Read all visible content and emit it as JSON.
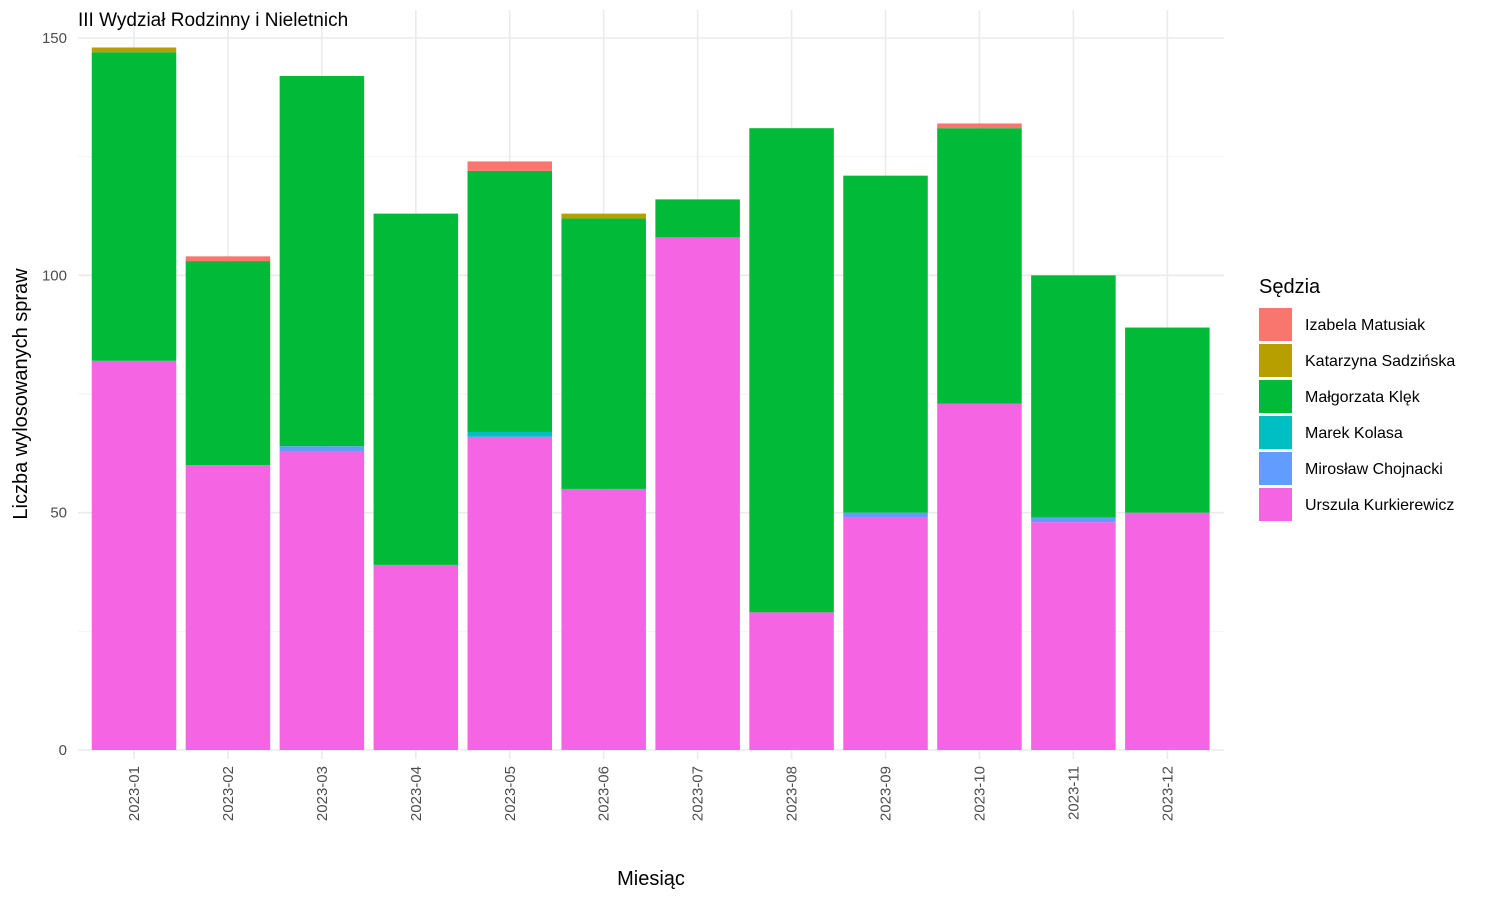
{
  "chart_data": {
    "type": "bar",
    "stacked": true,
    "title": "III Wydział Rodzinny i Nieletnich",
    "xlabel": "Miesiąc",
    "ylabel": "Liczba wylosowanych spraw",
    "ylim": [
      0,
      150
    ],
    "yticks": [
      0,
      50,
      100,
      150
    ],
    "grid": true,
    "legend": {
      "title": "Sędzia",
      "position": "right"
    },
    "categories": [
      "2023-01",
      "2023-02",
      "2023-03",
      "2023-04",
      "2023-05",
      "2023-06",
      "2023-07",
      "2023-08",
      "2023-09",
      "2023-10",
      "2023-11",
      "2023-12"
    ],
    "series": [
      {
        "name": "Urszula Kurkierewicz",
        "color": "#F564E3",
        "values": [
          82,
          60,
          63,
          39,
          66,
          55,
          108,
          29,
          49,
          73,
          48,
          50
        ]
      },
      {
        "name": "Mirosław Chojnacki",
        "color": "#619CFF",
        "values": [
          0,
          0,
          1,
          0,
          0,
          0,
          0,
          0,
          1,
          0,
          1,
          0
        ]
      },
      {
        "name": "Marek Kolasa",
        "color": "#00BFC4",
        "values": [
          0,
          0,
          0,
          0,
          1,
          0,
          0,
          0,
          0,
          0,
          0,
          0
        ]
      },
      {
        "name": "Małgorzata Klęk",
        "color": "#00BA38",
        "values": [
          65,
          43,
          78,
          74,
          55,
          57,
          8,
          102,
          71,
          58,
          51,
          39
        ]
      },
      {
        "name": "Katarzyna Sadzińska",
        "color": "#B79F00",
        "values": [
          1,
          0,
          0,
          0,
          0,
          1,
          0,
          0,
          0,
          0,
          0,
          0
        ]
      },
      {
        "name": "Izabela Matusiak",
        "color": "#F8766D",
        "values": [
          0,
          1,
          0,
          0,
          2,
          0,
          0,
          0,
          0,
          1,
          0,
          0
        ]
      }
    ]
  }
}
